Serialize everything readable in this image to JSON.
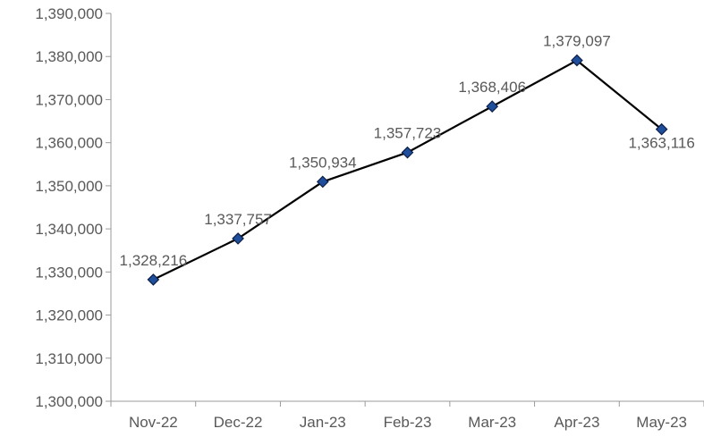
{
  "chart_data": {
    "type": "line",
    "categories": [
      "Nov-22",
      "Dec-22",
      "Jan-23",
      "Feb-23",
      "Mar-23",
      "Apr-23",
      "May-23"
    ],
    "series": [
      {
        "values": [
          1328216,
          1337757,
          1350934,
          1357723,
          1368406,
          1379097,
          1363116
        ]
      }
    ],
    "data_labels": [
      "1,328,216",
      "1,337,757",
      "1,350,934",
      "1,357,723",
      "1,368,406",
      "1,379,097",
      "1,363,116"
    ],
    "y_tick_labels": [
      "1,300,000",
      "1,310,000",
      "1,320,000",
      "1,330,000",
      "1,340,000",
      "1,350,000",
      "1,360,000",
      "1,370,000",
      "1,380,000",
      "1,390,000"
    ],
    "ylim": [
      1300000,
      1390000
    ],
    "y_step": 10000,
    "grid": false,
    "legend": "none",
    "colors": {
      "line": "#000000",
      "marker_fill": "#1f4e9c",
      "marker_stroke": "#0d1f45",
      "axis": "#9a9a9a",
      "text": "#595959"
    }
  }
}
